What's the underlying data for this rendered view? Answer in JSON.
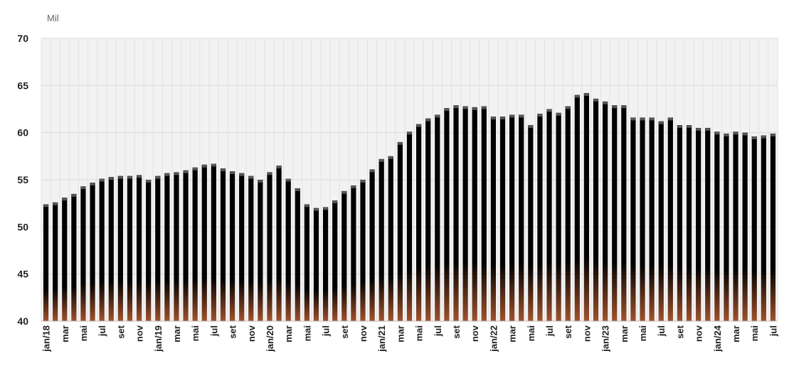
{
  "chart_data": {
    "type": "bar",
    "unit_label": "Mil",
    "ylim": [
      40,
      70
    ],
    "y_ticks": [
      40,
      45,
      50,
      55,
      60,
      65,
      70
    ],
    "grid": true,
    "colors": {
      "bar_top": "#000000",
      "bar_bottom": "#a0522d",
      "cap": "#555555",
      "plot_bg": "#f2f2f2",
      "grid": "#d9d9d9"
    },
    "categories": [
      "jan/18",
      "fev/18",
      "mar/18",
      "abr/18",
      "mai/18",
      "jun/18",
      "jul/18",
      "ago/18",
      "set/18",
      "out/18",
      "nov/18",
      "dez/18",
      "jan/19",
      "fev/19",
      "mar/19",
      "abr/19",
      "mai/19",
      "jun/19",
      "jul/19",
      "ago/19",
      "set/19",
      "out/19",
      "nov/19",
      "dez/19",
      "jan/20",
      "fev/20",
      "mar/20",
      "abr/20",
      "mai/20",
      "jun/20",
      "jul/20",
      "ago/20",
      "set/20",
      "out/20",
      "nov/20",
      "dez/20",
      "jan/21",
      "fev/21",
      "mar/21",
      "abr/21",
      "mai/21",
      "jun/21",
      "jul/21",
      "ago/21",
      "set/21",
      "out/21",
      "nov/21",
      "dez/21",
      "jan/22",
      "fev/22",
      "mar/22",
      "abr/22",
      "mai/22",
      "jun/22",
      "jul/22",
      "ago/22",
      "set/22",
      "out/22",
      "nov/22",
      "dez/22",
      "jan/23",
      "fev/23",
      "mar/23",
      "abr/23",
      "mai/23",
      "jun/23",
      "jul/23",
      "ago/23",
      "set/23",
      "out/23",
      "nov/23",
      "dez/23",
      "jan/24",
      "fev/24",
      "mar/24",
      "abr/24",
      "mai/24",
      "jun/24",
      "jul/24"
    ],
    "x_tick_labels": [
      "jan/18",
      "",
      "mar",
      "",
      "mai",
      "",
      "jul",
      "",
      "set",
      "",
      "nov",
      "",
      "jan/19",
      "",
      "mar",
      "",
      "mai",
      "",
      "jul",
      "",
      "set",
      "",
      "nov",
      "",
      "jan/20",
      "",
      "mar",
      "",
      "mai",
      "",
      "jul",
      "",
      "set",
      "",
      "nov",
      "",
      "jan/21",
      "",
      "mar",
      "",
      "mai",
      "",
      "jul",
      "",
      "set",
      "",
      "nov",
      "",
      "jan/22",
      "",
      "mar",
      "",
      "mai",
      "",
      "jul",
      "",
      "set",
      "",
      "nov",
      "",
      "jan/23",
      "",
      "mar",
      "",
      "mai",
      "",
      "jul",
      "",
      "set",
      "",
      "nov",
      "",
      "jan/24",
      "",
      "mar",
      "",
      "mai",
      "",
      "jul"
    ],
    "values": [
      52.4,
      52.6,
      53.1,
      53.5,
      54.3,
      54.7,
      55.1,
      55.3,
      55.4,
      55.4,
      55.5,
      55.0,
      55.4,
      55.7,
      55.8,
      56.0,
      56.3,
      56.6,
      56.7,
      56.2,
      55.9,
      55.7,
      55.4,
      55.0,
      55.8,
      56.5,
      55.1,
      54.1,
      52.4,
      52.0,
      52.1,
      52.8,
      53.8,
      54.4,
      55.0,
      56.1,
      57.2,
      57.5,
      59.0,
      60.1,
      60.9,
      61.5,
      61.9,
      62.6,
      62.9,
      62.8,
      62.7,
      62.8,
      61.7,
      61.7,
      61.9,
      61.9,
      60.8,
      62.0,
      62.5,
      62.1,
      62.8,
      64.0,
      64.2,
      63.6,
      63.3,
      62.9,
      62.9,
      61.6,
      61.6,
      61.6,
      61.2,
      61.6,
      60.8,
      60.8,
      60.5,
      60.5,
      60.1,
      59.9,
      60.1,
      60.0,
      59.6,
      59.7,
      59.9
    ]
  }
}
